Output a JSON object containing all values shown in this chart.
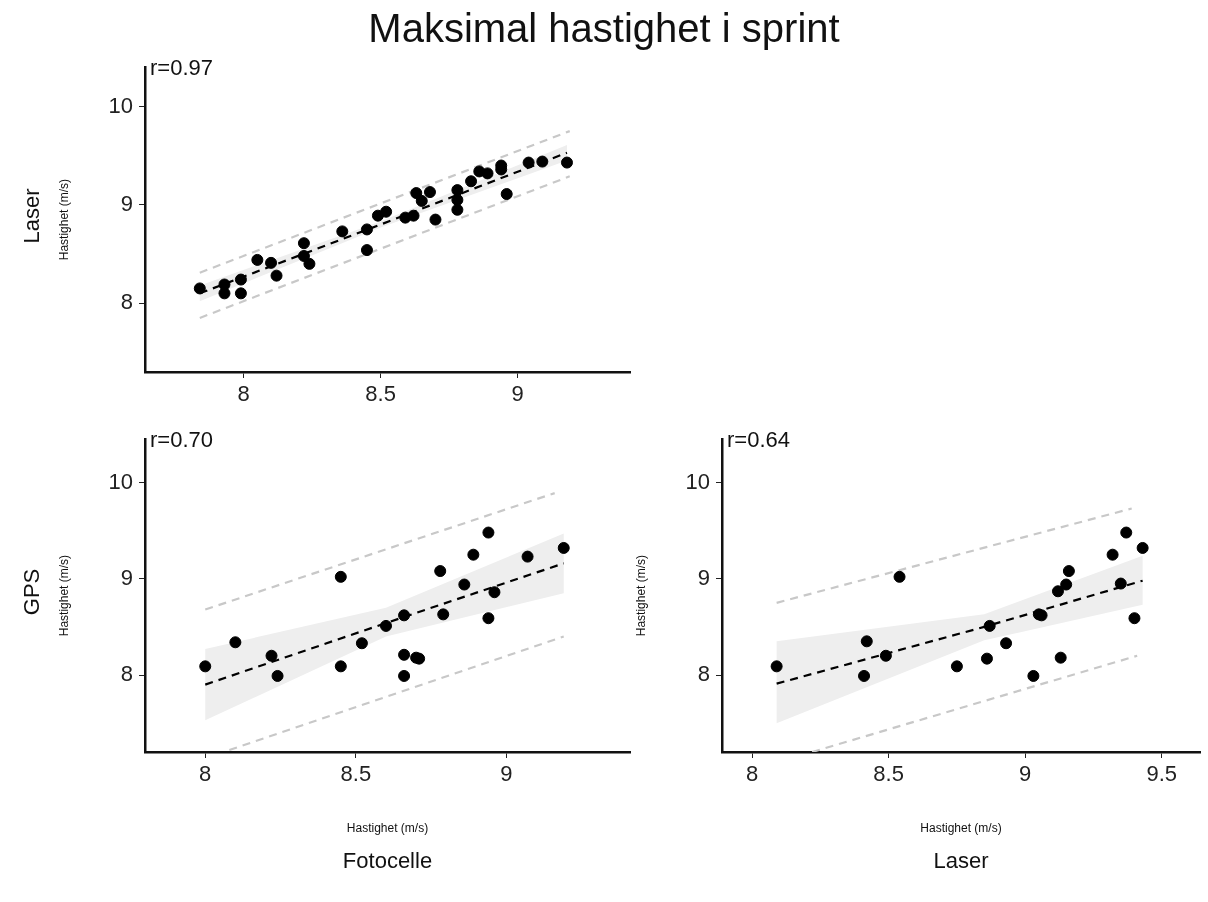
{
  "chart_data": [
    {
      "type": "scatter",
      "title": "Maksimal hastighet i sprint",
      "ylabel": "Hastighet (m/s)",
      "annotations": [
        "r=0.97",
        "Laser"
      ],
      "xlim": [
        7.64,
        9.41
      ],
      "ylim": [
        7.3,
        10.4
      ],
      "xticks": [
        8,
        8.5,
        9
      ],
      "yticks": [
        8,
        9,
        10
      ],
      "series": [
        {
          "type": "scatter",
          "marker": "circle",
          "color": "#000000",
          "x": [
            7.84,
            7.93,
            7.93,
            7.99,
            7.99,
            8.05,
            8.1,
            8.12,
            8.22,
            8.22,
            8.24,
            8.36,
            8.45,
            8.45,
            8.49,
            8.52,
            8.59,
            8.62,
            8.63,
            8.65,
            8.68,
            8.7,
            8.78,
            8.78,
            8.78,
            8.83,
            8.86,
            8.89,
            8.94,
            8.94,
            8.96,
            9.04,
            9.09,
            9.18
          ],
          "values": [
            8.15,
            8.19,
            8.1,
            8.24,
            8.1,
            8.44,
            8.41,
            8.28,
            8.61,
            8.48,
            8.4,
            8.73,
            8.75,
            8.54,
            8.89,
            8.93,
            8.87,
            8.89,
            9.12,
            9.04,
            9.13,
            8.85,
            9.15,
            9.05,
            8.95,
            9.24,
            9.34,
            9.32,
            9.4,
            9.36,
            9.11,
            9.43,
            9.44,
            9.43
          ]
        },
        {
          "type": "line",
          "line_style": "dashed",
          "color": "#000000",
          "x": [
            7.84,
            8.5,
            9.18
          ],
          "values": [
            8.1,
            8.8,
            9.53
          ],
          "lower": [
            8.02,
            8.77,
            9.45
          ],
          "upper": [
            8.18,
            8.83,
            9.61
          ]
        },
        {
          "type": "line",
          "line_style": "dashed",
          "color": "#c8c8c8",
          "x": [
            7.84,
            9.19
          ],
          "values": [
            8.31,
            9.75
          ]
        },
        {
          "type": "line",
          "line_style": "dashed",
          "color": "#c8c8c8",
          "x": [
            7.84,
            9.19
          ],
          "values": [
            7.85,
            9.29
          ]
        }
      ]
    },
    {
      "type": "scatter",
      "xlabel": "Hastighet (m/s)",
      "ylabel": "Hastighet (m/s)",
      "annotations": [
        "r=0.70",
        "GPS",
        "Fotocelle"
      ],
      "xlim": [
        7.8,
        9.41
      ],
      "ylim": [
        7.2,
        10.45
      ],
      "xticks": [
        8,
        8.5,
        9
      ],
      "yticks": [
        8,
        9,
        10
      ],
      "series": [
        {
          "type": "scatter",
          "marker": "circle",
          "color": "#000000",
          "x": [
            8.0,
            8.1,
            8.22,
            8.24,
            8.45,
            8.45,
            8.52,
            8.6,
            8.66,
            8.66,
            8.66,
            8.7,
            8.71,
            8.78,
            8.79,
            8.86,
            8.89,
            8.94,
            8.94,
            8.96,
            9.07,
            9.19
          ],
          "values": [
            8.09,
            8.34,
            8.2,
            7.99,
            9.02,
            8.09,
            8.33,
            8.51,
            8.62,
            8.21,
            7.99,
            8.18,
            8.17,
            9.08,
            8.63,
            8.94,
            9.25,
            9.48,
            8.59,
            8.86,
            9.23,
            9.32
          ]
        },
        {
          "type": "line",
          "line_style": "dashed",
          "color": "#000000",
          "x": [
            8.0,
            8.6,
            9.19
          ],
          "values": [
            7.9,
            8.54,
            9.16
          ],
          "lower": [
            7.53,
            8.4,
            8.85
          ],
          "upper": [
            8.27,
            8.7,
            9.47
          ]
        },
        {
          "type": "line",
          "line_style": "dashed",
          "color": "#c8c8c8",
          "x": [
            8.0,
            9.16
          ],
          "values": [
            8.68,
            9.89
          ]
        },
        {
          "type": "line",
          "line_style": "dashed",
          "color": "#c8c8c8",
          "x": [
            8.08,
            9.19
          ],
          "values": [
            7.22,
            8.4
          ]
        }
      ]
    },
    {
      "type": "scatter",
      "xlabel": "Hastighet (m/s)",
      "ylabel": "Hastighet (m/s)",
      "annotations": [
        "r=0.64",
        "Laser"
      ],
      "xlim": [
        7.89,
        9.64
      ],
      "ylim": [
        7.2,
        10.45
      ],
      "xticks": [
        8,
        8.5,
        9,
        9.5
      ],
      "yticks": [
        8,
        9,
        10
      ],
      "series": [
        {
          "type": "scatter",
          "marker": "circle",
          "color": "#000000",
          "x": [
            8.09,
            8.42,
            8.41,
            8.49,
            8.54,
            8.75,
            8.86,
            8.87,
            8.93,
            9.03,
            9.05,
            9.06,
            9.13,
            9.12,
            9.15,
            9.16,
            9.32,
            9.35,
            9.37,
            9.4,
            9.43
          ],
          "values": [
            8.09,
            8.35,
            7.99,
            8.2,
            9.02,
            8.09,
            8.17,
            8.51,
            8.33,
            7.99,
            8.63,
            8.62,
            8.18,
            8.87,
            8.94,
            9.08,
            9.25,
            8.95,
            9.48,
            8.59,
            9.32
          ]
        },
        {
          "type": "line",
          "line_style": "dashed",
          "color": "#000000",
          "x": [
            8.09,
            8.85,
            9.43
          ],
          "values": [
            7.91,
            8.5,
            8.98
          ],
          "lower": [
            7.5,
            8.36,
            8.73
          ],
          "upper": [
            8.35,
            8.63,
            9.24
          ]
        },
        {
          "type": "line",
          "line_style": "dashed",
          "color": "#c8c8c8",
          "x": [
            8.09,
            9.39
          ],
          "values": [
            8.75,
            9.73
          ]
        },
        {
          "type": "line",
          "line_style": "dashed",
          "color": "#c8c8c8",
          "x": [
            8.22,
            9.41
          ],
          "values": [
            7.2,
            8.2
          ]
        }
      ]
    }
  ]
}
